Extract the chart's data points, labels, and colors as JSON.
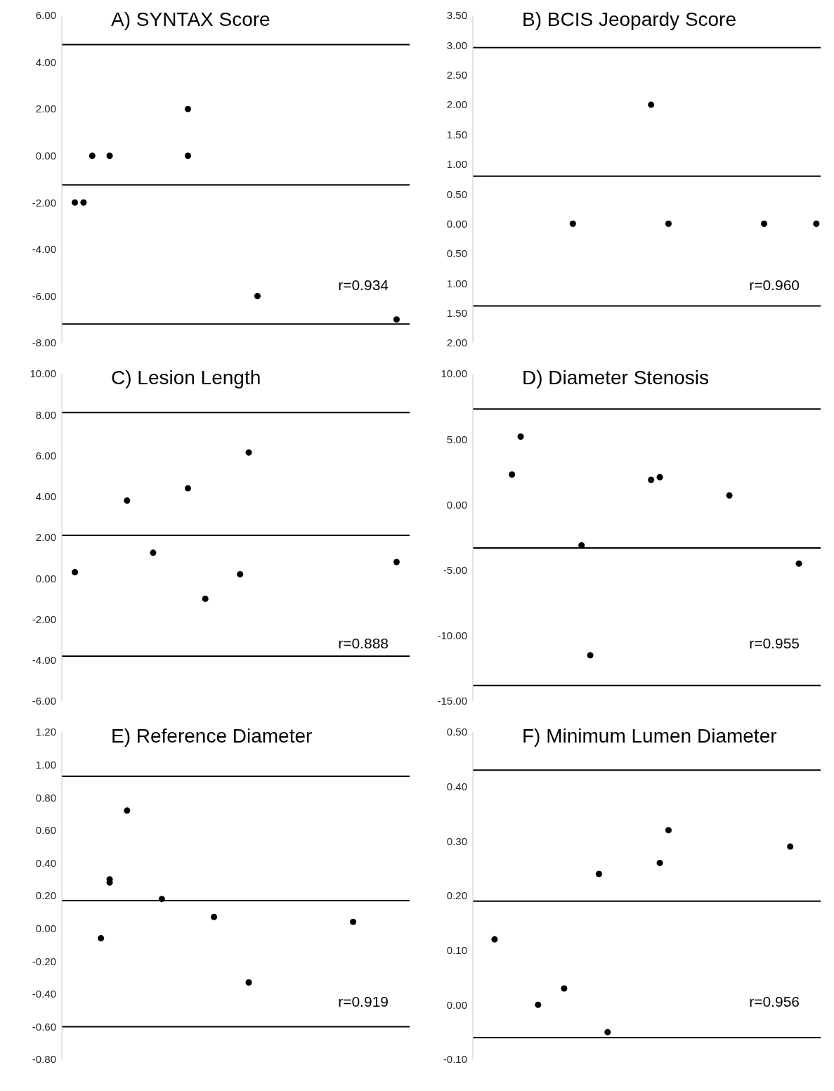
{
  "chart_data": [
    {
      "type": "scatter",
      "title": "A) SYNTAX Score",
      "categories": [
        null,
        null,
        null,
        null,
        null,
        null,
        null,
        null,
        null,
        null,
        null,
        null,
        null,
        null,
        null,
        null,
        null,
        null,
        null,
        null,
        null,
        null,
        null,
        null,
        null,
        null,
        null,
        null,
        null,
        null,
        null,
        null,
        null,
        null,
        null,
        null,
        null,
        null,
        null,
        null
      ],
      "series": [
        {
          "color": "#000000",
          "values": [
            null,
            -2,
            -2,
            0,
            null,
            0,
            null,
            null,
            null,
            null,
            null,
            null,
            null,
            null,
            2,
            null,
            null,
            null,
            null,
            null,
            null,
            null,
            -6,
            null,
            null,
            null,
            null,
            null,
            null,
            null,
            null,
            null,
            null,
            null,
            null,
            null,
            null,
            null,
            -7,
            null
          ]
        },
        {
          "color": "#000000",
          "values": [
            null,
            null,
            null,
            null,
            null,
            null,
            null,
            null,
            null,
            null,
            null,
            null,
            null,
            null,
            0,
            null,
            null,
            null,
            null,
            null,
            null,
            null,
            null,
            null,
            null,
            null,
            null,
            null,
            null,
            null,
            null,
            null,
            null,
            null,
            null,
            null,
            null,
            null,
            null,
            null
          ]
        }
      ],
      "marker": "circle",
      "ylim": [
        -8,
        6
      ],
      "yticks": [
        {
          "value": -8,
          "label": "-8.00"
        },
        {
          "value": -6,
          "label": "-6.00"
        },
        {
          "value": -4,
          "label": "-4.00"
        },
        {
          "value": -2,
          "label": "-2.00"
        },
        {
          "value": 0,
          "label": "0.00"
        },
        {
          "value": 2,
          "label": "2.00"
        },
        {
          "value": 4,
          "label": "4.00"
        },
        {
          "value": 6,
          "label": "6.00"
        }
      ],
      "tick_labels": "y",
      "grid": false,
      "legend": false,
      "annotations": [
        "r=0.934"
      ],
      "ref_lines": [
        {
          "axis": "y",
          "value": 4.75,
          "color": "#000000"
        },
        {
          "axis": "y",
          "value": -1.25,
          "color": "#000000"
        },
        {
          "axis": "y",
          "value": -7.2,
          "color": "#000000"
        }
      ]
    },
    {
      "type": "scatter",
      "title": "B) BCIS Jeopardy Score",
      "categories": [
        null,
        null,
        null,
        null,
        null,
        null,
        null,
        null,
        null,
        null,
        null,
        null,
        null,
        null,
        null,
        null,
        null,
        null,
        null,
        null,
        null,
        null,
        null,
        null,
        null,
        null,
        null,
        null,
        null,
        null,
        null,
        null,
        null,
        null,
        null,
        null,
        null,
        null,
        null,
        null
      ],
      "series": [
        {
          "color": "#000000",
          "values": [
            null,
            null,
            null,
            null,
            null,
            null,
            null,
            null,
            null,
            null,
            null,
            0,
            null,
            null,
            null,
            null,
            null,
            null,
            null,
            null,
            2,
            null,
            0,
            null,
            null,
            null,
            null,
            null,
            null,
            null,
            null,
            null,
            null,
            0,
            null,
            null,
            null,
            null,
            null,
            0
          ]
        }
      ],
      "marker": "circle",
      "ylim": [
        -2,
        3.5
      ],
      "yticks": [
        {
          "value": -2,
          "label": "2.00"
        },
        {
          "value": -1.5,
          "label": "1.50"
        },
        {
          "value": -1,
          "label": "1.00"
        },
        {
          "value": -0.5,
          "label": "0.50"
        },
        {
          "value": 0,
          "label": "0.00"
        },
        {
          "value": 0.5,
          "label": "0.50"
        },
        {
          "value": 1,
          "label": "1.00"
        },
        {
          "value": 1.5,
          "label": "1.50"
        },
        {
          "value": 2,
          "label": "2.00"
        },
        {
          "value": 2.5,
          "label": "2.50"
        },
        {
          "value": 3,
          "label": "3.00"
        },
        {
          "value": 3.5,
          "label": "3.50"
        }
      ],
      "tick_labels": "y",
      "grid": false,
      "legend": false,
      "annotations": [
        "r=0.960"
      ],
      "ref_lines": [
        {
          "axis": "y",
          "value": 2.96,
          "color": "#000000"
        },
        {
          "axis": "y",
          "value": 0.8,
          "color": "#000000"
        },
        {
          "axis": "y",
          "value": -1.38,
          "color": "#000000"
        }
      ]
    },
    {
      "type": "scatter",
      "title": "C) Lesion Length",
      "categories": [
        null,
        null,
        null,
        null,
        null,
        null,
        null,
        null,
        null,
        null,
        null,
        null,
        null,
        null,
        null,
        null,
        null,
        null,
        null,
        null,
        null,
        null,
        null,
        null,
        null,
        null,
        null,
        null,
        null,
        null,
        null,
        null,
        null,
        null,
        null,
        null,
        null,
        null,
        null,
        null
      ],
      "series": [
        {
          "color": "#000000",
          "values": [
            null,
            0.3,
            null,
            null,
            null,
            null,
            null,
            3.8,
            null,
            null,
            1.25,
            null,
            null,
            null,
            4.4,
            null,
            -1,
            null,
            null,
            null,
            0.2,
            6.15,
            null,
            null,
            null,
            null,
            null,
            null,
            null,
            null,
            null,
            null,
            null,
            null,
            null,
            null,
            null,
            null,
            0.8,
            null
          ]
        }
      ],
      "marker": "circle",
      "ylim": [
        -6,
        10
      ],
      "yticks": [
        {
          "value": -6,
          "label": "-6.00"
        },
        {
          "value": -4,
          "label": "-4.00"
        },
        {
          "value": -2,
          "label": "-2.00"
        },
        {
          "value": 0,
          "label": "0.00"
        },
        {
          "value": 2,
          "label": "2.00"
        },
        {
          "value": 4,
          "label": "4.00"
        },
        {
          "value": 6,
          "label": "6.00"
        },
        {
          "value": 8,
          "label": "8.00"
        },
        {
          "value": 10,
          "label": "10.00"
        }
      ],
      "tick_labels": "y",
      "grid": false,
      "legend": false,
      "annotations": [
        "r=0.888"
      ],
      "ref_lines": [
        {
          "axis": "y",
          "value": 8.1,
          "color": "#000000"
        },
        {
          "axis": "y",
          "value": 2.1,
          "color": "#000000"
        },
        {
          "axis": "y",
          "value": -3.8,
          "color": "#000000"
        }
      ]
    },
    {
      "type": "scatter",
      "title": "D) Diameter Stenosis",
      "categories": [
        null,
        null,
        null,
        null,
        null,
        null,
        null,
        null,
        null,
        null,
        null,
        null,
        null,
        null,
        null,
        null,
        null,
        null,
        null,
        null,
        null,
        null,
        null,
        null,
        null,
        null,
        null,
        null,
        null,
        null,
        null,
        null,
        null,
        null,
        null,
        null,
        null,
        null,
        null,
        null
      ],
      "series": [
        {
          "color": "#000000",
          "values": [
            null,
            null,
            null,
            null,
            2.3,
            5.2,
            null,
            null,
            null,
            null,
            null,
            null,
            -3.1,
            -11.5,
            null,
            null,
            null,
            null,
            null,
            null,
            1.9,
            2.1,
            null,
            null,
            null,
            null,
            null,
            null,
            null,
            0.7,
            null,
            null,
            null,
            null,
            null,
            null,
            null,
            -4.5,
            null,
            null
          ]
        }
      ],
      "marker": "circle",
      "ylim": [
        -15,
        10
      ],
      "yticks": [
        {
          "value": -15,
          "label": "-15.00"
        },
        {
          "value": -10,
          "label": "-10.00"
        },
        {
          "value": -5,
          "label": "-5.00"
        },
        {
          "value": 0,
          "label": "0.00"
        },
        {
          "value": 5,
          "label": "5.00"
        },
        {
          "value": 10,
          "label": "10.00"
        }
      ],
      "tick_labels": "y",
      "grid": false,
      "legend": false,
      "annotations": [
        "r=0.955"
      ],
      "ref_lines": [
        {
          "axis": "y",
          "value": 7.3,
          "color": "#000000"
        },
        {
          "axis": "y",
          "value": -3.3,
          "color": "#000000"
        },
        {
          "axis": "y",
          "value": -13.8,
          "color": "#000000"
        }
      ]
    },
    {
      "type": "scatter",
      "title": "E) Reference Diameter",
      "categories": [
        null,
        null,
        null,
        null,
        null,
        null,
        null,
        null,
        null,
        null,
        null,
        null,
        null,
        null,
        null,
        null,
        null,
        null,
        null,
        null,
        null,
        null,
        null,
        null,
        null,
        null,
        null,
        null,
        null,
        null,
        null,
        null,
        null,
        null,
        null,
        null,
        null,
        null,
        null,
        null
      ],
      "series": [
        {
          "color": "#000000",
          "values": [
            null,
            null,
            null,
            null,
            -0.06,
            0.3,
            null,
            0.72,
            null,
            null,
            null,
            0.18,
            null,
            null,
            null,
            null,
            null,
            0.07,
            null,
            null,
            null,
            -0.33,
            null,
            null,
            null,
            null,
            null,
            null,
            null,
            null,
            null,
            null,
            null,
            0.04,
            null,
            null,
            null,
            null,
            null,
            null
          ]
        },
        {
          "color": "#000000",
          "values": [
            null,
            null,
            null,
            null,
            null,
            0.28,
            null,
            null,
            null,
            null,
            null,
            null,
            null,
            null,
            null,
            null,
            null,
            null,
            null,
            null,
            null,
            null,
            null,
            null,
            null,
            null,
            null,
            null,
            null,
            null,
            null,
            null,
            null,
            null,
            null,
            null,
            null,
            null,
            null,
            null
          ]
        }
      ],
      "marker": "circle",
      "ylim": [
        -0.8,
        1.2
      ],
      "yticks": [
        {
          "value": -0.8,
          "label": "-0.80"
        },
        {
          "value": -0.6,
          "label": "-0.60"
        },
        {
          "value": -0.4,
          "label": "-0.40"
        },
        {
          "value": -0.2,
          "label": "-0.20"
        },
        {
          "value": 0,
          "label": "0.00"
        },
        {
          "value": 0.2,
          "label": "0.20"
        },
        {
          "value": 0.4,
          "label": "0.40"
        },
        {
          "value": 0.6,
          "label": "0.60"
        },
        {
          "value": 0.8,
          "label": "0.80"
        },
        {
          "value": 1,
          "label": "1.00"
        },
        {
          "value": 1.2,
          "label": "1.20"
        }
      ],
      "tick_labels": "y",
      "grid": false,
      "legend": false,
      "annotations": [
        "r=0.919"
      ],
      "ref_lines": [
        {
          "axis": "y",
          "value": 0.93,
          "color": "#000000"
        },
        {
          "axis": "y",
          "value": 0.17,
          "color": "#000000"
        },
        {
          "axis": "y",
          "value": -0.6,
          "color": "#000000"
        }
      ]
    },
    {
      "type": "scatter",
      "title": "F) Minimum Lumen Diameter",
      "categories": [
        null,
        null,
        null,
        null,
        null,
        null,
        null,
        null,
        null,
        null,
        null,
        null,
        null,
        null,
        null,
        null,
        null,
        null,
        null,
        null,
        null,
        null,
        null,
        null,
        null,
        null,
        null,
        null,
        null,
        null,
        null,
        null,
        null,
        null,
        null,
        null,
        null,
        null,
        null,
        null
      ],
      "series": [
        {
          "color": "#000000",
          "values": [
            null,
            null,
            0.12,
            null,
            null,
            null,
            null,
            0,
            null,
            null,
            0.03,
            null,
            null,
            null,
            0.24,
            -0.05,
            null,
            null,
            null,
            null,
            null,
            0.26,
            0.32,
            null,
            null,
            null,
            null,
            null,
            null,
            null,
            null,
            null,
            null,
            null,
            null,
            null,
            0.29,
            null,
            null,
            null
          ]
        }
      ],
      "marker": "circle",
      "ylim": [
        -0.1,
        0.5
      ],
      "yticks": [
        {
          "value": -0.1,
          "label": "-0.10"
        },
        {
          "value": 0,
          "label": "0.00"
        },
        {
          "value": 0.1,
          "label": "0.10"
        },
        {
          "value": 0.2,
          "label": "0.20"
        },
        {
          "value": 0.3,
          "label": "0.30"
        },
        {
          "value": 0.4,
          "label": "0.40"
        },
        {
          "value": 0.5,
          "label": "0.50"
        }
      ],
      "tick_labels": "y",
      "grid": false,
      "legend": false,
      "annotations": [
        "r=0.956"
      ],
      "ref_lines": [
        {
          "axis": "y",
          "value": 0.43,
          "color": "#000000"
        },
        {
          "axis": "y",
          "value": 0.19,
          "color": "#000000"
        },
        {
          "axis": "y",
          "value": -0.06,
          "color": "#000000"
        }
      ]
    }
  ]
}
